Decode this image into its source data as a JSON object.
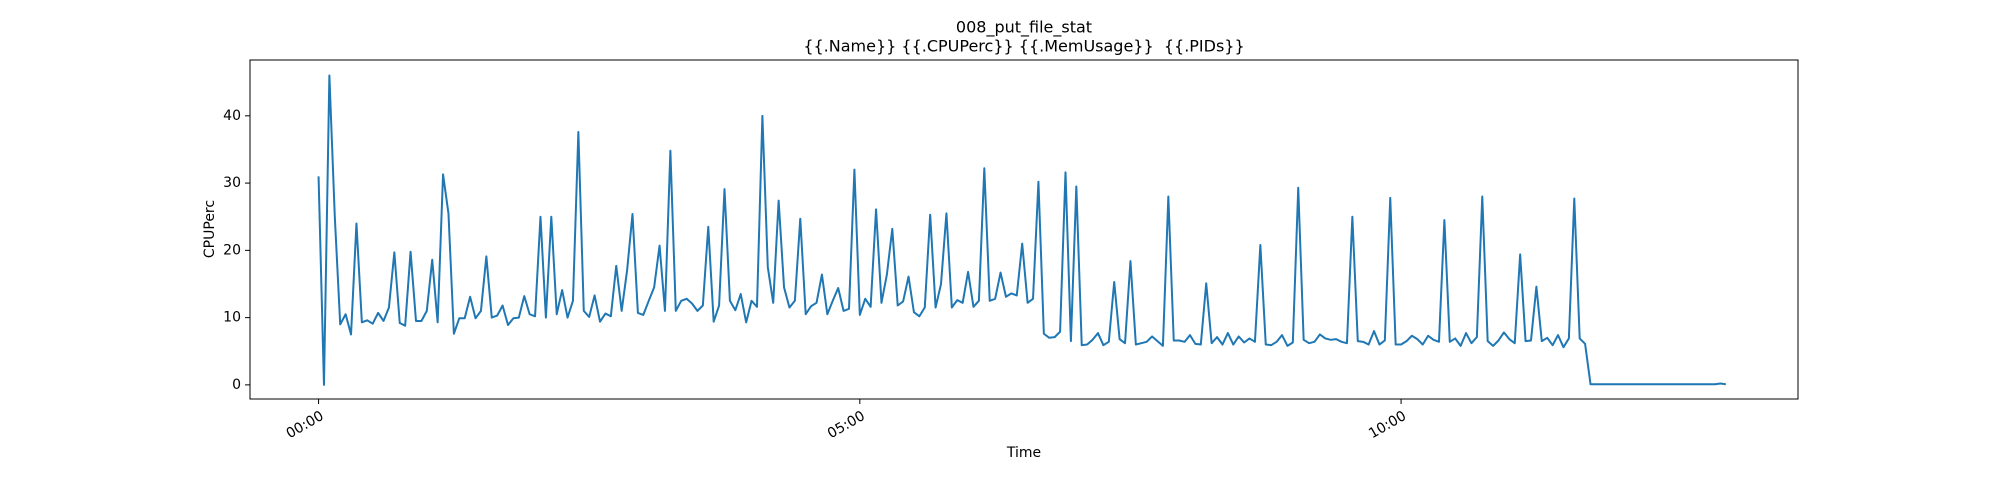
{
  "chart_data": {
    "type": "line",
    "title": "008_put_file_stat",
    "subtitle": "{{.Name}} {{.CPUPerc}} {{.MemUsage}}  {{.PIDs}}",
    "x_label": "Time",
    "y_label": "CPUPerc",
    "xlim": [
      -38,
      820
    ],
    "ylim": [
      -2.1,
      48.3
    ],
    "xticks": [
      {
        "value": 0,
        "label": "00:00"
      },
      {
        "value": 300,
        "label": "05:00"
      },
      {
        "value": 600,
        "label": "10:00"
      }
    ],
    "yticks": [
      0,
      10,
      20,
      30,
      40
    ],
    "grid": false,
    "x": [
      0,
      3,
      6,
      9,
      12,
      15,
      18,
      21,
      24,
      27,
      30,
      33,
      36,
      39,
      42,
      45,
      48,
      51,
      54,
      57,
      60,
      63,
      66,
      69,
      72,
      75,
      78,
      81,
      84,
      87,
      90,
      93,
      96,
      99,
      102,
      105,
      108,
      111,
      114,
      117,
      120,
      123,
      126,
      129,
      132,
      135,
      138,
      141,
      144,
      147,
      150,
      153,
      156,
      159,
      162,
      165,
      168,
      171,
      174,
      177,
      180,
      183,
      186,
      189,
      192,
      195,
      198,
      201,
      204,
      207,
      210,
      213,
      216,
      219,
      222,
      225,
      228,
      231,
      234,
      237,
      240,
      243,
      246,
      249,
      252,
      255,
      258,
      261,
      264,
      267,
      270,
      273,
      276,
      279,
      282,
      285,
      288,
      291,
      294,
      297,
      300,
      303,
      306,
      309,
      312,
      315,
      318,
      321,
      324,
      327,
      330,
      333,
      336,
      339,
      342,
      345,
      348,
      351,
      354,
      357,
      360,
      363,
      366,
      369,
      372,
      375,
      378,
      381,
      384,
      387,
      390,
      393,
      396,
      399,
      402,
      405,
      408,
      411,
      414,
      417,
      420,
      423,
      426,
      429,
      432,
      435,
      438,
      441,
      444,
      447,
      450,
      453,
      456,
      459,
      462,
      465,
      468,
      471,
      474,
      477,
      480,
      483,
      486,
      489,
      492,
      495,
      498,
      501,
      504,
      507,
      510,
      513,
      516,
      519,
      522,
      525,
      528,
      531,
      534,
      537,
      540,
      543,
      546,
      549,
      552,
      555,
      558,
      561,
      564,
      567,
      570,
      573,
      576,
      579,
      582,
      585,
      588,
      591,
      594,
      597,
      600,
      603,
      606,
      609,
      612,
      615,
      618,
      621,
      624,
      627,
      630,
      633,
      636,
      639,
      642,
      645,
      648,
      651,
      654,
      657,
      660,
      663,
      666,
      669,
      672,
      675,
      678,
      681,
      684,
      687,
      690,
      693,
      696,
      699,
      702,
      705,
      708,
      711,
      714,
      717,
      720,
      723,
      726,
      729,
      732,
      735,
      738,
      741,
      744,
      747,
      750,
      753,
      756,
      759,
      762,
      765,
      768,
      771,
      774,
      777,
      780
    ],
    "series": [
      {
        "name": "CPUPerc",
        "color": "#1f77b4",
        "values": [
          31,
          0,
          46,
          25,
          9,
          10.5,
          7.5,
          24,
          9.3,
          9.6,
          9.1,
          10.7,
          9.5,
          11.5,
          19.7,
          9.2,
          8.8,
          19.8,
          9.5,
          9.5,
          11,
          18.6,
          9.3,
          31.3,
          25.5,
          7.6,
          9.9,
          9.9,
          13.1,
          9.9,
          11,
          19.1,
          10,
          10.3,
          11.8,
          8.9,
          9.9,
          10,
          13.2,
          10.5,
          10.2,
          25,
          10,
          25,
          10.5,
          14.1,
          10,
          12.5,
          37.6,
          11,
          10.1,
          13.3,
          9.4,
          10.6,
          10.2,
          17.7,
          11,
          17,
          25.4,
          10.7,
          10.4,
          12.5,
          14.5,
          20.7,
          11,
          34.8,
          11,
          12.5,
          12.8,
          12.1,
          11,
          11.8,
          23.5,
          9.4,
          11.8,
          29.1,
          12.5,
          11.1,
          13.5,
          9.3,
          12.5,
          11.6,
          40,
          17.5,
          12.2,
          27.4,
          14.5,
          11.5,
          12.5,
          24.7,
          10.5,
          11.7,
          12.2,
          16.4,
          10.5,
          12.5,
          14.4,
          11,
          11.3,
          32,
          10.4,
          12.8,
          11.6,
          26.1,
          12.2,
          16.4,
          23.2,
          11.8,
          12.4,
          16.1,
          10.8,
          10.2,
          11.5,
          25.3,
          11.5,
          15,
          25.5,
          11.5,
          12.6,
          12.2,
          16.8,
          11.6,
          12.5,
          32.2,
          12.5,
          12.8,
          16.7,
          13.1,
          13.6,
          13.3,
          21,
          12.2,
          12.8,
          30.2,
          7.6,
          7,
          7.1,
          7.9,
          31.6,
          6.5,
          29.5,
          5.9,
          6,
          6.7,
          7.7,
          5.9,
          6.4,
          15.3,
          6.8,
          6.2,
          18.4,
          6,
          6.2,
          6.4,
          7.2,
          6.5,
          5.8,
          28,
          6.6,
          6.6,
          6.4,
          7.4,
          6.1,
          6,
          15.1,
          6.2,
          7.1,
          6,
          7.7,
          6,
          7.2,
          6.3,
          6.9,
          6.4,
          20.8,
          6,
          5.9,
          6.4,
          7.4,
          5.8,
          6.3,
          29.3,
          6.7,
          6.2,
          6.4,
          7.5,
          6.9,
          6.7,
          6.8,
          6.4,
          6.2,
          25,
          6.5,
          6.4,
          6,
          8,
          6,
          6.6,
          27.8,
          6,
          6,
          6.5,
          7.3,
          6.8,
          6,
          7.3,
          6.7,
          6.4,
          24.5,
          6.4,
          6.9,
          5.8,
          7.7,
          6.2,
          7.1,
          28,
          6.5,
          5.8,
          6.6,
          7.8,
          6.8,
          6.2,
          19.4,
          6.5,
          6.6,
          14.6,
          6.5,
          7,
          5.9,
          7.4,
          5.6,
          6.9,
          27.7,
          6.9,
          6.1,
          0.1,
          0.1,
          0.1,
          0.1,
          0.1,
          0.1,
          0.1,
          0.1,
          0.1,
          0.1,
          0.1,
          0.1,
          0.1,
          0.1,
          0.1,
          0.1,
          0.1,
          0.1,
          0.1,
          0.1,
          0.1,
          0.1,
          0.1,
          0.1,
          0.2,
          0.1
        ]
      }
    ]
  }
}
